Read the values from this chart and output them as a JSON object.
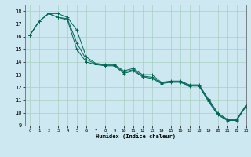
{
  "xlabel": "Humidex (Indice chaleur)",
  "bg_color": "#cde8f0",
  "grid_color": "#a8cfc0",
  "line_color": "#006655",
  "xlim": [
    -0.5,
    23
  ],
  "ylim": [
    9,
    18.5
  ],
  "xticks": [
    0,
    1,
    2,
    3,
    4,
    5,
    6,
    7,
    8,
    9,
    10,
    11,
    12,
    13,
    14,
    15,
    16,
    17,
    18,
    19,
    20,
    21,
    22,
    23
  ],
  "yticks": [
    9,
    10,
    11,
    12,
    13,
    14,
    15,
    16,
    17,
    18
  ],
  "line1_x": [
    0,
    1,
    2,
    3,
    4,
    5,
    6,
    7,
    8,
    9,
    10,
    11,
    12,
    13,
    14,
    15,
    16,
    17,
    18,
    19,
    20,
    21,
    22,
    23
  ],
  "line1_y": [
    16.1,
    17.2,
    17.8,
    17.8,
    17.5,
    16.5,
    14.4,
    13.9,
    13.8,
    13.8,
    13.3,
    13.5,
    13.0,
    13.0,
    12.4,
    12.5,
    12.5,
    12.2,
    12.2,
    11.1,
    10.0,
    9.5,
    9.5,
    10.6
  ],
  "line2_x": [
    0,
    1,
    2,
    3,
    4,
    5,
    6,
    7,
    8,
    9,
    10,
    11,
    12,
    13,
    14,
    15,
    16,
    17,
    18,
    19,
    20,
    21,
    22,
    23
  ],
  "line2_y": [
    16.1,
    17.2,
    17.8,
    17.5,
    17.4,
    15.5,
    14.2,
    13.85,
    13.75,
    13.75,
    13.2,
    13.4,
    12.9,
    12.8,
    12.35,
    12.45,
    12.45,
    12.15,
    12.15,
    11.0,
    9.9,
    9.45,
    9.45,
    10.55
  ],
  "line3_x": [
    0,
    1,
    2,
    3,
    4,
    5,
    6,
    7,
    8,
    9,
    10,
    11,
    12,
    13,
    14,
    15,
    16,
    17,
    18,
    19,
    20,
    21,
    22,
    23
  ],
  "line3_y": [
    16.1,
    17.2,
    17.8,
    17.5,
    17.3,
    15.0,
    14.0,
    13.8,
    13.7,
    13.7,
    13.1,
    13.3,
    12.85,
    12.7,
    12.3,
    12.4,
    12.4,
    12.1,
    12.1,
    10.9,
    9.85,
    9.4,
    9.4,
    10.5
  ]
}
